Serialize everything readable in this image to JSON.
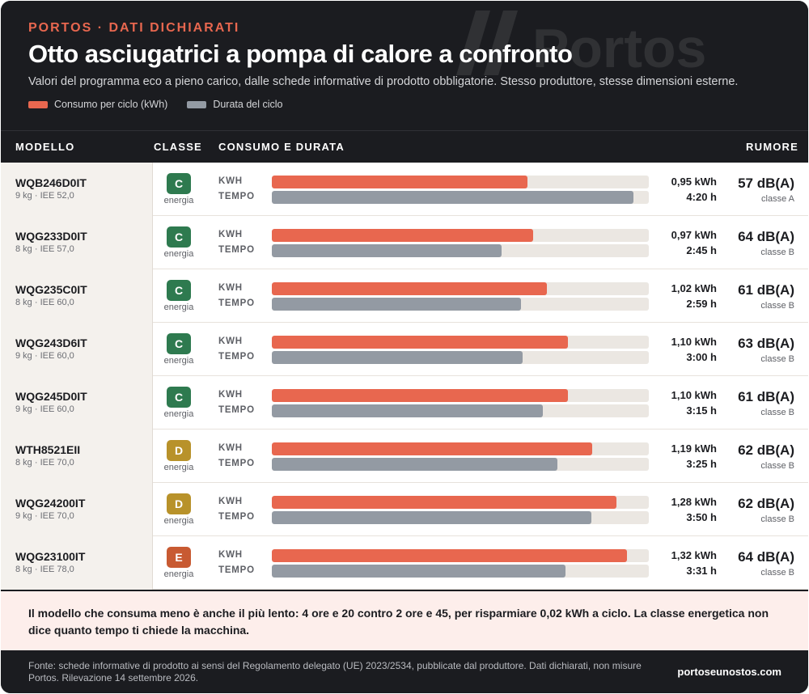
{
  "header": {
    "kicker": "PORTOS · DATI DICHIARATI",
    "title": "Otto asciugatrici a pompa di calore a confronto",
    "subtitle": "Valori del programma eco a pieno carico, dalle schede informative di prodotto obbligatorie. Stesso produttore, stesse dimensioni esterne.",
    "watermark": "Portos",
    "legend": [
      {
        "label": "Consumo per ciclo (kWh)",
        "color": "#e8674f"
      },
      {
        "label": "Durata del ciclo",
        "color": "#939aa3"
      }
    ]
  },
  "table_header": {
    "model": "MODELLO",
    "class": "CLASSE",
    "consumption": "CONSUMO E DURATA",
    "noise": "RUMORE"
  },
  "labels": {
    "energia": "energia",
    "kwh": "KWH",
    "tempo": "TEMPO"
  },
  "colors": {
    "kwh_bar": "#e8674f",
    "time_bar": "#939aa3",
    "class_C": "#2e7a4f",
    "class_D": "#b8922a",
    "class_E": "#c85a32"
  },
  "chart_data": {
    "type": "bar",
    "orientation": "horizontal",
    "categories": [
      "WQB246D0IT",
      "WQG233D0IT",
      "WQG235C0IT",
      "WQG243D6IT",
      "WQG245D0IT",
      "WTH8521EII",
      "WQG24200IT",
      "WQG23100IT"
    ],
    "series": [
      {
        "name": "Consumo per ciclo (kWh)",
        "color": "#e8674f",
        "values": [
          0.95,
          0.97,
          1.02,
          1.1,
          1.1,
          1.19,
          1.28,
          1.32
        ],
        "labels": [
          "0,95 kWh",
          "0,97 kWh",
          "1,02 kWh",
          "1,10 kWh",
          "1,10 kWh",
          "1,19 kWh",
          "1,28 kWh",
          "1,32 kWh"
        ],
        "max": 1.4
      },
      {
        "name": "Durata del ciclo",
        "color": "#939aa3",
        "values_minutes": [
          260,
          165,
          179,
          180,
          195,
          205,
          230,
          211
        ],
        "labels": [
          "4:20 h",
          "2:45 h",
          "2:59 h",
          "3:00 h",
          "3:15 h",
          "3:25 h",
          "3:50 h",
          "3:31 h"
        ],
        "max_minutes": 271
      }
    ],
    "rows": [
      {
        "model": "WQB246D0IT",
        "meta": "9 kg · IEE 52,0",
        "class": "C",
        "noise": "57 dB(A)",
        "noise_class": "classe A"
      },
      {
        "model": "WQG233D0IT",
        "meta": "8 kg · IEE 57,0",
        "class": "C",
        "noise": "64 dB(A)",
        "noise_class": "classe B"
      },
      {
        "model": "WQG235C0IT",
        "meta": "8 kg · IEE 60,0",
        "class": "C",
        "noise": "61 dB(A)",
        "noise_class": "classe B"
      },
      {
        "model": "WQG243D6IT",
        "meta": "9 kg · IEE 60,0",
        "class": "C",
        "noise": "63 dB(A)",
        "noise_class": "classe B"
      },
      {
        "model": "WQG245D0IT",
        "meta": "9 kg · IEE 60,0",
        "class": "C",
        "noise": "61 dB(A)",
        "noise_class": "classe B"
      },
      {
        "model": "WTH8521EII",
        "meta": "8 kg · IEE 70,0",
        "class": "D",
        "noise": "62 dB(A)",
        "noise_class": "classe B"
      },
      {
        "model": "WQG24200IT",
        "meta": "9 kg · IEE 70,0",
        "class": "D",
        "noise": "62 dB(A)",
        "noise_class": "classe B"
      },
      {
        "model": "WQG23100IT",
        "meta": "8 kg · IEE 78,0",
        "class": "E",
        "noise": "64 dB(A)",
        "noise_class": "classe B"
      }
    ]
  },
  "note": "Il modello che consuma meno è anche il più lento: 4 ore e 20 contro 2 ore e 45, per risparmiare 0,02 kWh a ciclo. La classe energetica non dice quanto tempo ti chiede la macchina.",
  "footer": {
    "source": "Fonte: schede informative di prodotto ai sensi del Regolamento delegato (UE) 2023/2534, pubblicate dal produttore. Dati dichiarati, non misure Portos. Rilevazione 14 settembre 2026.",
    "site": "portoseunostos.com"
  }
}
